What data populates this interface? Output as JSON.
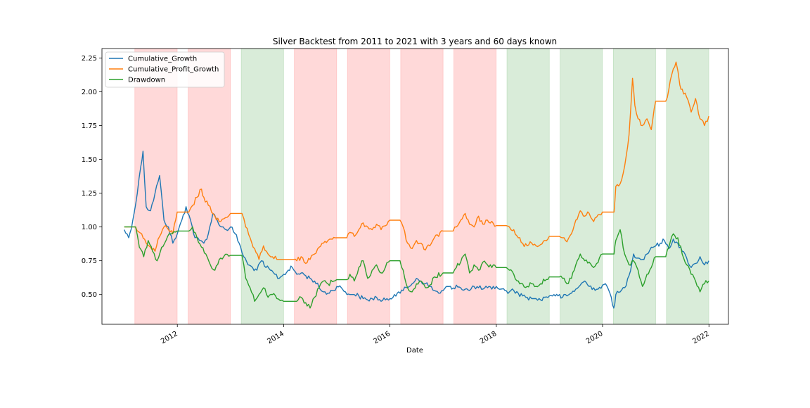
{
  "chart_data": {
    "type": "line",
    "title": "Silver Backtest from 2011 to 2021 with 3 years and 60 days known",
    "xlabel": "Date",
    "ylabel": "",
    "xlim": [
      "2010-08-01",
      "2022-05-15"
    ],
    "ylim": [
      0.28,
      2.32
    ],
    "xticks": [
      "2012",
      "2014",
      "2016",
      "2018",
      "2020",
      "2022"
    ],
    "yticks": [
      "0.50",
      "0.75",
      "1.00",
      "1.25",
      "1.50",
      "1.75",
      "2.00",
      "2.25"
    ],
    "legend_position": "top-left",
    "grid": false,
    "shaded_periods": [
      {
        "start": "2011-03-15",
        "end": "2011-12-31",
        "color": "#ff9999"
      },
      {
        "start": "2012-03-15",
        "end": "2012-12-31",
        "color": "#ff9999"
      },
      {
        "start": "2013-03-15",
        "end": "2013-12-31",
        "color": "#99cc99"
      },
      {
        "start": "2014-03-15",
        "end": "2014-12-31",
        "color": "#ff9999"
      },
      {
        "start": "2015-03-15",
        "end": "2015-12-31",
        "color": "#ff9999"
      },
      {
        "start": "2016-03-15",
        "end": "2016-12-31",
        "color": "#ff9999"
      },
      {
        "start": "2017-03-15",
        "end": "2017-12-31",
        "color": "#ff9999"
      },
      {
        "start": "2018-03-15",
        "end": "2018-12-31",
        "color": "#99cc99"
      },
      {
        "start": "2019-03-15",
        "end": "2019-12-31",
        "color": "#99cc99"
      },
      {
        "start": "2020-03-15",
        "end": "2020-12-31",
        "color": "#99cc99"
      },
      {
        "start": "2021-03-15",
        "end": "2021-12-31",
        "color": "#99cc99"
      }
    ],
    "series": [
      {
        "name": "Cumulative_Growth",
        "color": "#1f77b4",
        "x": [
          "2011-01-01",
          "2011-02-01",
          "2011-03-01",
          "2011-04-01",
          "2011-04-25",
          "2011-05-10",
          "2011-06-01",
          "2011-07-01",
          "2011-08-01",
          "2011-09-01",
          "2011-10-01",
          "2011-11-01",
          "2011-12-01",
          "2012-01-01",
          "2012-02-01",
          "2012-03-01",
          "2012-04-01",
          "2012-05-01",
          "2012-06-01",
          "2012-07-01",
          "2012-08-01",
          "2012-09-01",
          "2012-10-01",
          "2012-11-01",
          "2012-12-01",
          "2013-01-01",
          "2013-02-01",
          "2013-03-01",
          "2013-04-01",
          "2013-05-01",
          "2013-06-01",
          "2013-07-01",
          "2013-08-01",
          "2013-09-01",
          "2013-10-01",
          "2013-11-01",
          "2013-12-01",
          "2014-01-01",
          "2014-02-01",
          "2014-03-01",
          "2014-04-01",
          "2014-05-01",
          "2014-06-01",
          "2014-07-01",
          "2014-08-01",
          "2014-09-01",
          "2014-10-01",
          "2014-11-01",
          "2014-12-01",
          "2015-01-01",
          "2015-02-01",
          "2015-03-01",
          "2015-04-01",
          "2015-05-01",
          "2015-06-01",
          "2015-07-01",
          "2015-08-01",
          "2015-09-01",
          "2015-10-01",
          "2015-11-01",
          "2015-12-01",
          "2016-01-01",
          "2016-02-01",
          "2016-03-01",
          "2016-04-01",
          "2016-05-01",
          "2016-06-01",
          "2016-07-01",
          "2016-08-01",
          "2016-09-01",
          "2016-10-01",
          "2016-11-01",
          "2016-12-01",
          "2017-01-01",
          "2017-02-01",
          "2017-03-01",
          "2017-04-01",
          "2017-05-01",
          "2017-06-01",
          "2017-07-01",
          "2017-08-01",
          "2017-09-01",
          "2017-10-01",
          "2017-11-01",
          "2017-12-01",
          "2018-01-01",
          "2018-02-01",
          "2018-03-01",
          "2018-04-01",
          "2018-05-01",
          "2018-06-01",
          "2018-07-01",
          "2018-08-01",
          "2018-09-01",
          "2018-10-01",
          "2018-11-01",
          "2018-12-01",
          "2019-01-01",
          "2019-02-01",
          "2019-03-01",
          "2019-04-01",
          "2019-05-01",
          "2019-06-01",
          "2019-07-01",
          "2019-08-01",
          "2019-09-01",
          "2019-10-01",
          "2019-11-01",
          "2019-12-01",
          "2020-01-01",
          "2020-02-01",
          "2020-03-01",
          "2020-03-18",
          "2020-04-01",
          "2020-05-01",
          "2020-06-01",
          "2020-07-01",
          "2020-08-01",
          "2020-09-01",
          "2020-10-01",
          "2020-11-01",
          "2020-12-01",
          "2021-01-01",
          "2021-02-01",
          "2021-03-01",
          "2021-04-01",
          "2021-05-01",
          "2021-06-01",
          "2021-07-01",
          "2021-08-01",
          "2021-09-01",
          "2021-10-01",
          "2021-11-01",
          "2021-12-01",
          "2021-12-31"
        ],
        "y": [
          0.98,
          0.92,
          1.05,
          1.25,
          1.45,
          1.56,
          1.15,
          1.12,
          1.25,
          1.38,
          1.05,
          1.0,
          0.88,
          0.95,
          1.05,
          1.15,
          1.05,
          0.92,
          0.9,
          0.88,
          0.95,
          1.1,
          1.05,
          1.0,
          0.98,
          1.0,
          0.95,
          0.88,
          0.78,
          0.72,
          0.7,
          0.68,
          0.75,
          0.7,
          0.68,
          0.65,
          0.62,
          0.65,
          0.68,
          0.7,
          0.65,
          0.66,
          0.64,
          0.62,
          0.6,
          0.55,
          0.52,
          0.51,
          0.53,
          0.56,
          0.55,
          0.52,
          0.5,
          0.5,
          0.49,
          0.47,
          0.46,
          0.47,
          0.48,
          0.45,
          0.46,
          0.47,
          0.5,
          0.52,
          0.53,
          0.55,
          0.58,
          0.62,
          0.6,
          0.58,
          0.56,
          0.53,
          0.51,
          0.53,
          0.56,
          0.54,
          0.57,
          0.55,
          0.54,
          0.53,
          0.56,
          0.55,
          0.54,
          0.55,
          0.54,
          0.56,
          0.54,
          0.53,
          0.52,
          0.53,
          0.51,
          0.49,
          0.48,
          0.47,
          0.47,
          0.46,
          0.48,
          0.49,
          0.5,
          0.49,
          0.48,
          0.49,
          0.51,
          0.54,
          0.57,
          0.6,
          0.56,
          0.55,
          0.54,
          0.57,
          0.56,
          0.48,
          0.4,
          0.5,
          0.52,
          0.55,
          0.64,
          0.8,
          0.77,
          0.76,
          0.8,
          0.85,
          0.86,
          0.88,
          0.9,
          0.84,
          0.91,
          0.88,
          0.82,
          0.77,
          0.7,
          0.73,
          0.78,
          0.72,
          0.75
        ]
      },
      {
        "name": "Cumulative_Profit_Growth",
        "color": "#ff7f0e",
        "x": [
          "2011-01-01",
          "2011-03-01",
          "2011-03-20",
          "2011-05-01",
          "2011-06-01",
          "2011-07-01",
          "2011-08-01",
          "2011-09-01",
          "2011-10-01",
          "2011-11-01",
          "2011-12-01",
          "2011-12-31",
          "2012-03-10",
          "2012-03-20",
          "2012-04-15",
          "2012-05-15",
          "2012-06-15",
          "2012-07-01",
          "2012-08-01",
          "2012-09-15",
          "2012-10-15",
          "2012-11-15",
          "2012-12-31",
          "2013-03-10",
          "2013-03-20",
          "2013-04-15",
          "2013-05-15",
          "2013-06-15",
          "2013-07-15",
          "2013-08-15",
          "2013-09-15",
          "2013-10-15",
          "2013-11-15",
          "2013-12-31",
          "2014-03-10",
          "2014-04-01",
          "2014-05-01",
          "2014-06-01",
          "2014-07-01",
          "2014-08-01",
          "2014-09-01",
          "2014-10-01",
          "2014-11-01",
          "2014-12-31",
          "2015-03-10",
          "2015-04-01",
          "2015-05-01",
          "2015-06-01",
          "2015-07-01",
          "2015-08-01",
          "2015-09-01",
          "2015-10-01",
          "2015-11-01",
          "2015-12-31",
          "2016-03-10",
          "2016-04-01",
          "2016-05-01",
          "2016-06-01",
          "2016-07-01",
          "2016-08-01",
          "2016-09-01",
          "2016-10-01",
          "2016-11-01",
          "2016-12-31",
          "2017-03-10",
          "2017-04-01",
          "2017-05-01",
          "2017-06-01",
          "2017-07-01",
          "2017-08-01",
          "2017-09-01",
          "2017-10-01",
          "2017-11-01",
          "2017-12-31",
          "2018-03-10",
          "2018-04-01",
          "2018-05-01",
          "2018-06-01",
          "2018-07-01",
          "2018-08-01",
          "2018-09-01",
          "2018-10-01",
          "2018-11-01",
          "2018-12-31",
          "2019-03-10",
          "2019-04-01",
          "2019-05-01",
          "2019-06-01",
          "2019-07-01",
          "2019-08-01",
          "2019-09-01",
          "2019-10-01",
          "2019-11-01",
          "2019-12-31",
          "2020-03-10",
          "2020-03-20",
          "2020-04-01",
          "2020-05-01",
          "2020-06-01",
          "2020-07-01",
          "2020-07-25",
          "2020-08-10",
          "2020-09-01",
          "2020-10-01",
          "2020-11-01",
          "2020-12-01",
          "2020-12-31",
          "2021-03-10",
          "2021-04-01",
          "2021-05-01",
          "2021-05-20",
          "2021-06-15",
          "2021-07-01",
          "2021-08-01",
          "2021-09-01",
          "2021-10-01",
          "2021-11-01",
          "2021-12-01",
          "2021-12-31"
        ],
        "y": [
          1.0,
          1.0,
          1.0,
          0.95,
          0.88,
          0.85,
          0.82,
          0.93,
          1.0,
          0.98,
          0.95,
          1.11,
          1.11,
          1.11,
          1.16,
          1.22,
          1.28,
          1.22,
          1.16,
          1.08,
          1.04,
          1.06,
          1.1,
          1.1,
          1.1,
          1.0,
          0.92,
          0.84,
          0.76,
          0.86,
          0.8,
          0.78,
          0.76,
          0.76,
          0.76,
          0.75,
          0.78,
          0.73,
          0.76,
          0.8,
          0.85,
          0.88,
          0.9,
          0.92,
          0.92,
          0.96,
          0.93,
          0.98,
          1.03,
          1.0,
          0.98,
          1.02,
          0.98,
          1.05,
          1.05,
          1.0,
          0.88,
          0.84,
          0.9,
          0.88,
          0.83,
          0.86,
          0.92,
          0.97,
          0.97,
          1.0,
          1.05,
          1.1,
          1.02,
          1.0,
          1.08,
          1.02,
          1.05,
          1.01,
          1.01,
          1.0,
          0.98,
          0.92,
          0.88,
          0.86,
          0.88,
          0.86,
          0.87,
          0.93,
          0.93,
          0.92,
          0.89,
          0.95,
          1.05,
          1.12,
          1.08,
          1.1,
          1.04,
          1.11,
          1.11,
          1.11,
          1.3,
          1.32,
          1.45,
          1.68,
          2.1,
          1.9,
          1.8,
          1.75,
          1.8,
          1.72,
          1.93,
          1.93,
          2.02,
          2.17,
          2.22,
          2.05,
          2.02,
          1.96,
          1.85,
          1.95,
          1.8,
          1.75,
          1.82
        ]
      },
      {
        "name": "Drawdown",
        "color": "#2ca02c",
        "x": [
          "2011-01-01",
          "2011-03-01",
          "2011-03-20",
          "2011-04-15",
          "2011-05-15",
          "2011-06-15",
          "2011-07-15",
          "2011-08-15",
          "2011-09-15",
          "2011-10-15",
          "2011-11-15",
          "2011-12-31",
          "2012-03-10",
          "2012-03-20",
          "2012-04-15",
          "2012-05-15",
          "2012-06-15",
          "2012-07-15",
          "2012-08-15",
          "2012-09-15",
          "2012-10-15",
          "2012-11-15",
          "2012-12-31",
          "2013-03-10",
          "2013-03-20",
          "2013-04-15",
          "2013-05-15",
          "2013-06-15",
          "2013-07-15",
          "2013-08-15",
          "2013-09-15",
          "2013-10-15",
          "2013-11-15",
          "2013-12-31",
          "2014-03-10",
          "2014-04-01",
          "2014-05-01",
          "2014-06-01",
          "2014-07-01",
          "2014-08-01",
          "2014-09-01",
          "2014-10-01",
          "2014-11-01",
          "2014-12-31",
          "2015-03-10",
          "2015-04-01",
          "2015-05-01",
          "2015-06-01",
          "2015-07-01",
          "2015-08-01",
          "2015-09-01",
          "2015-10-01",
          "2015-11-01",
          "2015-12-31",
          "2016-03-10",
          "2016-04-01",
          "2016-05-01",
          "2016-06-01",
          "2016-07-01",
          "2016-08-01",
          "2016-09-01",
          "2016-10-01",
          "2016-11-01",
          "2016-12-31",
          "2017-03-10",
          "2017-04-01",
          "2017-05-01",
          "2017-06-01",
          "2017-07-01",
          "2017-08-01",
          "2017-09-01",
          "2017-10-01",
          "2017-11-01",
          "2017-12-31",
          "2018-03-10",
          "2018-04-01",
          "2018-05-01",
          "2018-06-01",
          "2018-07-01",
          "2018-08-01",
          "2018-09-01",
          "2018-10-01",
          "2018-11-01",
          "2018-12-31",
          "2019-03-10",
          "2019-04-01",
          "2019-05-01",
          "2019-06-01",
          "2019-07-01",
          "2019-08-01",
          "2019-09-01",
          "2019-10-01",
          "2019-11-01",
          "2019-12-31",
          "2020-03-10",
          "2020-03-20",
          "2020-04-01",
          "2020-05-01",
          "2020-06-01",
          "2020-07-01",
          "2020-08-01",
          "2020-09-01",
          "2020-10-01",
          "2020-11-01",
          "2020-12-01",
          "2020-12-31",
          "2021-03-10",
          "2021-04-01",
          "2021-05-01",
          "2021-06-01",
          "2021-07-01",
          "2021-08-01",
          "2021-09-01",
          "2021-10-01",
          "2021-11-01",
          "2021-12-01",
          "2021-12-31"
        ],
        "y": [
          1.0,
          1.0,
          1.0,
          0.85,
          0.78,
          0.9,
          0.82,
          0.75,
          0.85,
          0.9,
          0.95,
          0.97,
          0.97,
          0.97,
          1.0,
          0.92,
          0.85,
          0.8,
          0.72,
          0.68,
          0.76,
          0.78,
          0.79,
          0.79,
          0.79,
          0.62,
          0.55,
          0.45,
          0.5,
          0.55,
          0.48,
          0.5,
          0.47,
          0.45,
          0.45,
          0.45,
          0.48,
          0.44,
          0.4,
          0.48,
          0.55,
          0.6,
          0.58,
          0.61,
          0.61,
          0.65,
          0.6,
          0.7,
          0.75,
          0.62,
          0.68,
          0.72,
          0.66,
          0.75,
          0.75,
          0.68,
          0.55,
          0.52,
          0.58,
          0.6,
          0.55,
          0.57,
          0.63,
          0.66,
          0.66,
          0.7,
          0.74,
          0.8,
          0.66,
          0.72,
          0.68,
          0.74,
          0.72,
          0.7,
          0.7,
          0.68,
          0.65,
          0.6,
          0.58,
          0.56,
          0.58,
          0.56,
          0.58,
          0.63,
          0.63,
          0.62,
          0.58,
          0.62,
          0.72,
          0.8,
          0.75,
          0.74,
          0.7,
          0.8,
          0.8,
          0.8,
          0.9,
          0.98,
          0.8,
          0.72,
          0.75,
          0.68,
          0.56,
          0.65,
          0.7,
          0.78,
          0.78,
          0.85,
          0.95,
          0.92,
          0.8,
          0.72,
          0.65,
          0.6,
          0.52,
          0.58,
          0.6
        ]
      }
    ]
  }
}
